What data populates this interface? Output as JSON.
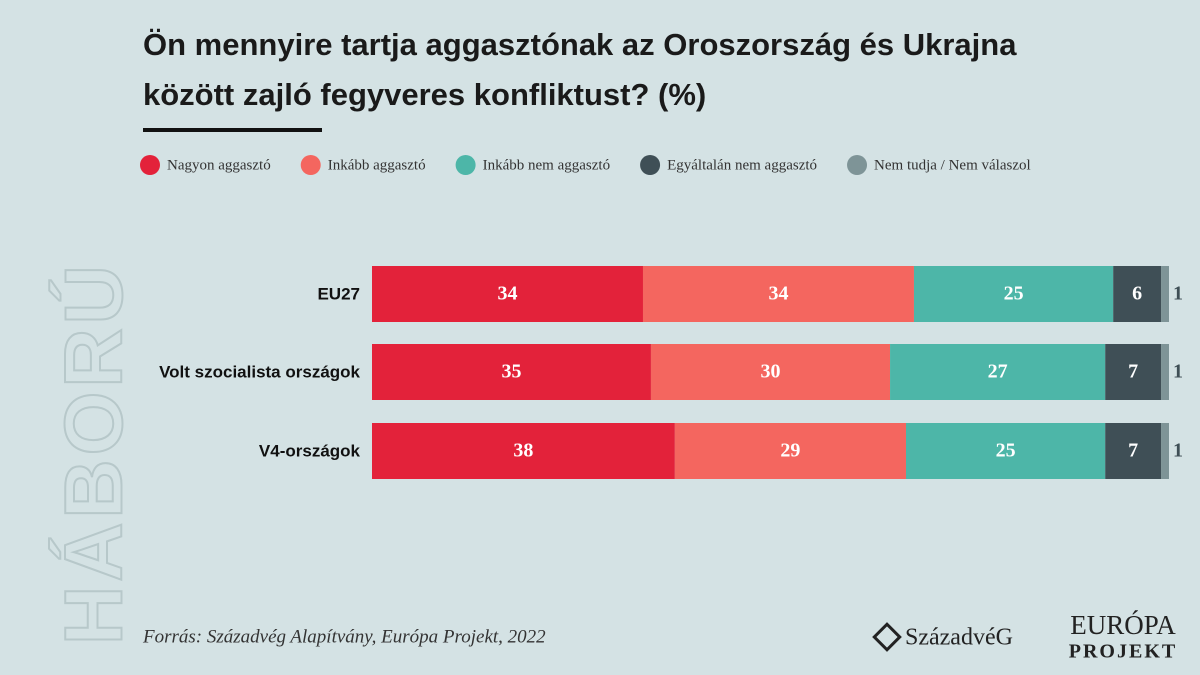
{
  "chart_data": {
    "type": "stacked-bar-horizontal",
    "title": [
      "Ön mennyire tartja aggasztónak az Oroszország és Ukrajna",
      "között zajló fegyveres konfliktust? (%)"
    ],
    "categories": [
      "EU27",
      "Volt szocialista országok",
      "V4-országok"
    ],
    "series": [
      {
        "name": "Nagyon aggasztó",
        "color": "#e3223a",
        "values": [
          34,
          35,
          38
        ]
      },
      {
        "name": "Inkább aggasztó",
        "color": "#f4665f",
        "values": [
          34,
          30,
          29
        ]
      },
      {
        "name": "Inkább nem aggasztó",
        "color": "#4db6a8",
        "values": [
          25,
          27,
          25
        ]
      },
      {
        "name": "Egyáltalán nem aggasztó",
        "color": "#3f4f56",
        "values": [
          6,
          7,
          7
        ]
      },
      {
        "name": "Nem tudja / Nem válaszol",
        "color": "#7e9497",
        "values": [
          1,
          1,
          1
        ]
      }
    ],
    "xlim": [
      0,
      100
    ],
    "source": "Forrás: Századvég Alapítvány, Európa Projekt, 2022",
    "side_label": "HÁBORÚ",
    "logos": [
      "SzázadvéG",
      "EURÓPA",
      "PROJEKT"
    ]
  }
}
